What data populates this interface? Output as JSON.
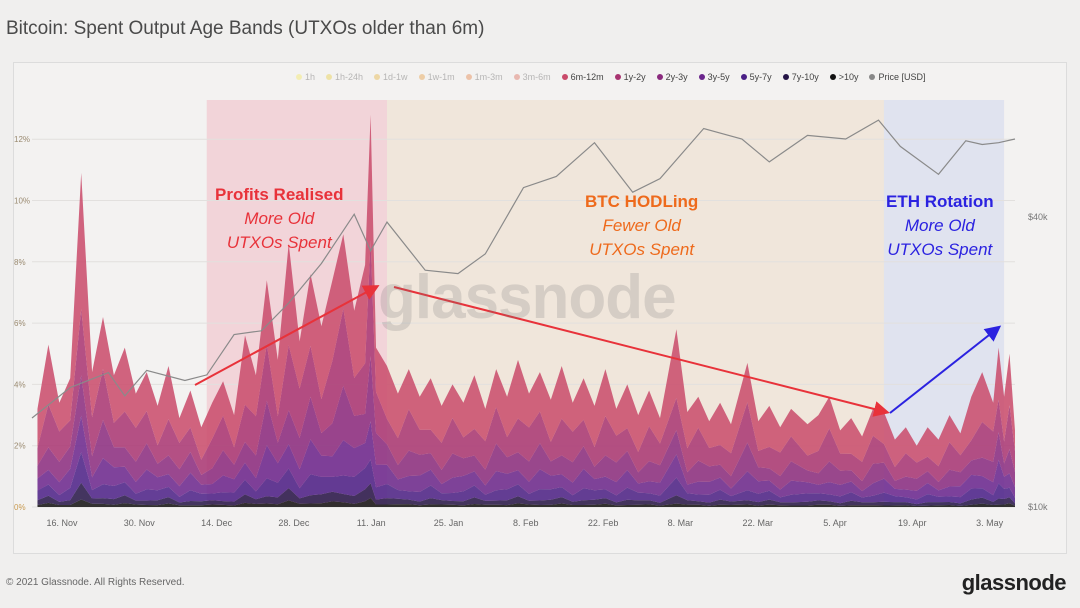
{
  "title": "Bitcoin: Spent Output Age Bands (UTXOs older than 6m)",
  "footer": "© 2021 Glassnode. All Rights Reserved.",
  "logo": "glassnode",
  "watermark": "glassnode",
  "annotations": {
    "profits": {
      "heading": "Profits Realised",
      "line1": "More Old",
      "line2": "UTXOs Spent",
      "color": "#e8323a"
    },
    "hodl": {
      "heading": "BTC HODLing",
      "line1": "Fewer Old",
      "line2": "UTXOs Spent",
      "color": "#ee6a1c"
    },
    "eth": {
      "heading": "ETH Rotation",
      "line1": "More Old",
      "line2": "UTXOs Spent",
      "color": "#2b22e0"
    }
  },
  "chart_data": {
    "type": "area",
    "stacked": true,
    "title": "Bitcoin: Spent Output Age Bands (UTXOs older than 6m)",
    "legend": [
      {
        "name": "1h",
        "color": "#f5e642",
        "active": false
      },
      {
        "name": "1h-24h",
        "color": "#e6c51e",
        "active": false
      },
      {
        "name": "1d-1w",
        "color": "#e3a516",
        "active": false
      },
      {
        "name": "1w-1m",
        "color": "#e38a1c",
        "active": false
      },
      {
        "name": "1m-3m",
        "color": "#e06a24",
        "active": false
      },
      {
        "name": "3m-6m",
        "color": "#d64f3a",
        "active": false
      },
      {
        "name": "6m-12m",
        "color": "#c94a6a",
        "active": true
      },
      {
        "name": "1y-2y",
        "color": "#a83471",
        "active": true
      },
      {
        "name": "2y-3y",
        "color": "#8a2a7e",
        "active": true
      },
      {
        "name": "3y-5y",
        "color": "#6a258c",
        "active": true
      },
      {
        "name": "5y-7y",
        "color": "#4a1f86",
        "active": true
      },
      {
        "name": "7y-10y",
        "color": "#241446",
        "active": true
      },
      {
        "name": ">10y",
        "color": "#111111",
        "active": true
      },
      {
        "name": "Price [USD]",
        "color": "#888888",
        "active": true
      }
    ],
    "legend_position": "top-right",
    "x_ticks": [
      "16. Nov",
      "30. Nov",
      "14. Dec",
      "28. Dec",
      "11. Jan",
      "25. Jan",
      "8. Feb",
      "22. Feb",
      "8. Mar",
      "22. Mar",
      "5. Apr",
      "19. Apr",
      "3. May"
    ],
    "x_range": [
      "2020-11-10",
      "2021-05-09"
    ],
    "y_left": {
      "ticks": [
        "0%",
        "2%",
        "4%",
        "6%",
        "8%",
        "10%",
        "12%"
      ],
      "range": [
        0,
        12.5
      ]
    },
    "y_right": {
      "ticks": [
        "$10k",
        "$40k"
      ],
      "scale": "log",
      "range": [
        10000,
        70000
      ]
    },
    "grid": true,
    "total_spent_pct": [
      [
        "2020-11-11",
        3.2
      ],
      [
        "2020-11-13",
        5.3
      ],
      [
        "2020-11-15",
        3.4
      ],
      [
        "2020-11-17",
        4.2
      ],
      [
        "2020-11-19",
        10.9
      ],
      [
        "2020-11-21",
        4.4
      ],
      [
        "2020-11-23",
        6.2
      ],
      [
        "2020-11-25",
        4.3
      ],
      [
        "2020-11-27",
        5.2
      ],
      [
        "2020-11-29",
        3.7
      ],
      [
        "2020-12-01",
        4.4
      ],
      [
        "2020-12-03",
        3.3
      ],
      [
        "2020-12-05",
        4.6
      ],
      [
        "2020-12-07",
        2.9
      ],
      [
        "2020-12-09",
        3.8
      ],
      [
        "2020-12-11",
        2.6
      ],
      [
        "2020-12-13",
        3.4
      ],
      [
        "2020-12-15",
        4.1
      ],
      [
        "2020-12-17",
        3.0
      ],
      [
        "2020-12-19",
        5.6
      ],
      [
        "2020-12-21",
        4.3
      ],
      [
        "2020-12-23",
        7.4
      ],
      [
        "2020-12-25",
        4.8
      ],
      [
        "2020-12-27",
        8.6
      ],
      [
        "2020-12-29",
        5.4
      ],
      [
        "2020-12-31",
        7.6
      ],
      [
        "2021-01-02",
        5.9
      ],
      [
        "2021-01-04",
        7.4
      ],
      [
        "2021-01-06",
        8.9
      ],
      [
        "2021-01-08",
        6.4
      ],
      [
        "2021-01-10",
        7.9
      ],
      [
        "2021-01-11",
        12.8
      ],
      [
        "2021-01-12",
        5.2
      ],
      [
        "2021-01-14",
        4.6
      ],
      [
        "2021-01-16",
        3.7
      ],
      [
        "2021-01-18",
        4.5
      ],
      [
        "2021-01-20",
        3.6
      ],
      [
        "2021-01-22",
        4.2
      ],
      [
        "2021-01-24",
        3.3
      ],
      [
        "2021-01-26",
        4.0
      ],
      [
        "2021-01-28",
        3.4
      ],
      [
        "2021-01-30",
        4.3
      ],
      [
        "2021-02-01",
        3.2
      ],
      [
        "2021-02-03",
        4.5
      ],
      [
        "2021-02-05",
        3.6
      ],
      [
        "2021-02-07",
        4.8
      ],
      [
        "2021-02-09",
        3.7
      ],
      [
        "2021-02-11",
        4.4
      ],
      [
        "2021-02-13",
        3.5
      ],
      [
        "2021-02-15",
        4.6
      ],
      [
        "2021-02-17",
        3.4
      ],
      [
        "2021-02-19",
        4.2
      ],
      [
        "2021-02-21",
        3.3
      ],
      [
        "2021-02-23",
        4.5
      ],
      [
        "2021-02-25",
        3.2
      ],
      [
        "2021-02-27",
        4.0
      ],
      [
        "2021-03-01",
        3.0
      ],
      [
        "2021-03-03",
        3.8
      ],
      [
        "2021-03-05",
        2.9
      ],
      [
        "2021-03-08",
        5.8
      ],
      [
        "2021-03-10",
        3.1
      ],
      [
        "2021-03-12",
        3.6
      ],
      [
        "2021-03-14",
        2.8
      ],
      [
        "2021-03-16",
        3.4
      ],
      [
        "2021-03-18",
        2.7
      ],
      [
        "2021-03-21",
        4.7
      ],
      [
        "2021-03-23",
        2.8
      ],
      [
        "2021-03-25",
        3.3
      ],
      [
        "2021-03-27",
        2.6
      ],
      [
        "2021-03-29",
        3.2
      ],
      [
        "2021-04-01",
        2.7
      ],
      [
        "2021-04-03",
        3.0
      ],
      [
        "2021-04-05",
        3.6
      ],
      [
        "2021-04-07",
        2.5
      ],
      [
        "2021-04-09",
        2.9
      ],
      [
        "2021-04-11",
        2.3
      ],
      [
        "2021-04-13",
        3.2
      ],
      [
        "2021-04-15",
        3.1
      ],
      [
        "2021-04-17",
        2.2
      ],
      [
        "2021-04-19",
        2.6
      ],
      [
        "2021-04-21",
        2.0
      ],
      [
        "2021-04-23",
        2.6
      ],
      [
        "2021-04-25",
        2.2
      ],
      [
        "2021-04-27",
        3.0
      ],
      [
        "2021-04-29",
        2.4
      ],
      [
        "2021-05-01",
        3.6
      ],
      [
        "2021-05-03",
        4.4
      ],
      [
        "2021-05-05",
        3.4
      ],
      [
        "2021-05-06",
        5.2
      ],
      [
        "2021-05-07",
        3.6
      ],
      [
        "2021-05-08",
        5.0
      ],
      [
        "2021-05-09",
        2.5
      ]
    ],
    "band_shares": {
      "6m-12m": 0.34,
      "1y-2y": 0.24,
      "2y-3y": 0.16,
      "3y-5y": 0.12,
      "5y-7y": 0.08,
      "7y-10y": 0.04,
      ">10y": 0.02
    },
    "price_usd": [
      [
        "2020-11-10",
        15300
      ],
      [
        "2020-11-17",
        17700
      ],
      [
        "2020-11-24",
        19000
      ],
      [
        "2020-11-27",
        17000
      ],
      [
        "2020-12-01",
        19200
      ],
      [
        "2020-12-08",
        18300
      ],
      [
        "2020-12-12",
        18800
      ],
      [
        "2020-12-17",
        22800
      ],
      [
        "2020-12-22",
        23200
      ],
      [
        "2020-12-27",
        26500
      ],
      [
        "2021-01-02",
        32000
      ],
      [
        "2021-01-08",
        40500
      ],
      [
        "2021-01-11",
        34000
      ],
      [
        "2021-01-14",
        39000
      ],
      [
        "2021-01-21",
        31000
      ],
      [
        "2021-01-27",
        30500
      ],
      [
        "2021-02-01",
        33500
      ],
      [
        "2021-02-08",
        46000
      ],
      [
        "2021-02-14",
        48500
      ],
      [
        "2021-02-21",
        57000
      ],
      [
        "2021-02-28",
        45000
      ],
      [
        "2021-03-05",
        48000
      ],
      [
        "2021-03-13",
        61000
      ],
      [
        "2021-03-20",
        58000
      ],
      [
        "2021-03-25",
        52000
      ],
      [
        "2021-04-01",
        59000
      ],
      [
        "2021-04-08",
        58000
      ],
      [
        "2021-04-14",
        63500
      ],
      [
        "2021-04-18",
        56000
      ],
      [
        "2021-04-25",
        49000
      ],
      [
        "2021-04-30",
        57500
      ],
      [
        "2021-05-03",
        56500
      ],
      [
        "2021-05-06",
        57000
      ],
      [
        "2021-05-09",
        58000
      ]
    ],
    "highlight_periods": [
      {
        "label": "Profits Realised",
        "start": "2020-12-12",
        "end": "2021-01-14",
        "color": "#f2c9d0"
      },
      {
        "label": "BTC HODLing",
        "start": "2021-01-14",
        "end": "2021-04-15",
        "color": "#efe2d3"
      },
      {
        "label": "ETH Rotation",
        "start": "2021-04-15",
        "end": "2021-05-07",
        "color": "#d9dded"
      }
    ]
  }
}
